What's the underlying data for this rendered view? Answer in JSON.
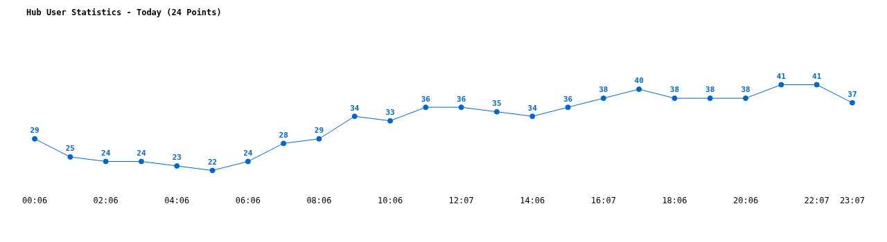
{
  "chart_data": {
    "type": "line",
    "title": "Hub User Statistics - Today (24 Points)",
    "categories": [
      "00:06",
      null,
      "02:06",
      null,
      "04:06",
      null,
      "06:06",
      null,
      "08:06",
      null,
      "10:06",
      null,
      "12:07",
      null,
      "14:06",
      null,
      "16:07",
      null,
      "18:06",
      null,
      "20:06",
      null,
      "22:07",
      "23:07"
    ],
    "series": [
      {
        "color": "#0066cc",
        "values": [
          29,
          25,
          24,
          24,
          23,
          22,
          24,
          28,
          29,
          34,
          33,
          36,
          36,
          35,
          34,
          36,
          38,
          40,
          38,
          38,
          38,
          41,
          41,
          37
        ]
      }
    ],
    "data_labels": true,
    "marker": "circle",
    "line_style": "solid",
    "grid": false,
    "legend": false
  }
}
